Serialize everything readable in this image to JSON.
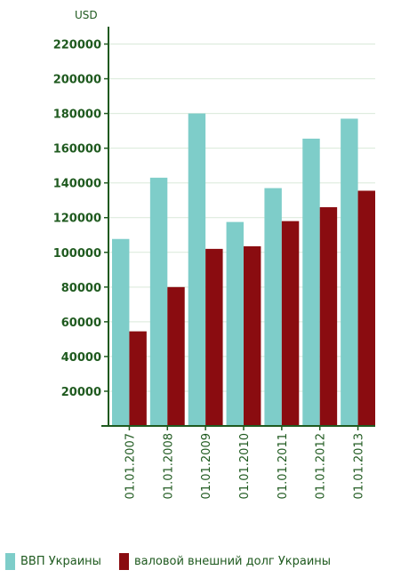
{
  "colors": {
    "gdp": "#7ecdc9",
    "debt": "#8a0c10",
    "axis": "#1f5a1f",
    "grid": "#d9e9d9"
  },
  "chart_data": {
    "type": "bar",
    "ylabel": "USD",
    "categories": [
      "01.01.2007",
      "01.01.2008",
      "01.01.2009",
      "01.01.2010",
      "01.01.2011",
      "01.01.2012",
      "01.01.2013"
    ],
    "ylim": [
      0,
      230000
    ],
    "yticks": [
      "20000",
      "40000",
      "60000",
      "80000",
      "100000",
      "120000",
      "140000",
      "160000",
      "180000",
      "200000",
      "220000"
    ],
    "grid": true,
    "legend_position": "bottom",
    "series": [
      {
        "name": "ВВП Украины",
        "values": [
          107700,
          143000,
          180000,
          117500,
          137000,
          165500,
          177000
        ]
      },
      {
        "name": "валовой внешний долг Украины",
        "values": [
          54500,
          80000,
          102000,
          103500,
          118000,
          126000,
          135500
        ]
      }
    ]
  }
}
